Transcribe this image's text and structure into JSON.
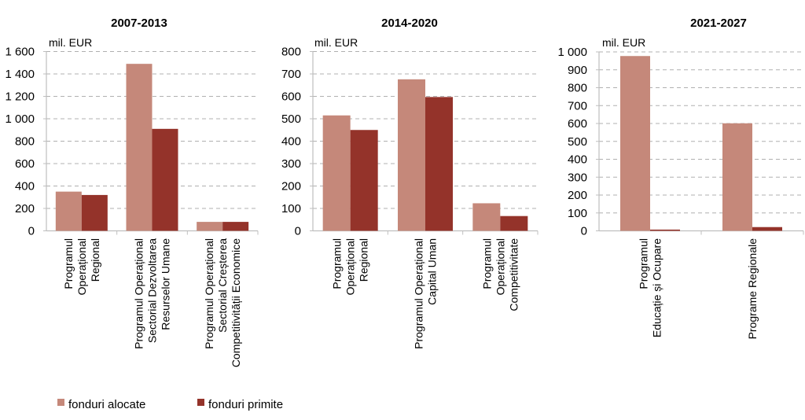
{
  "colors": {
    "alocate": "#C5887A",
    "primite": "#94332A",
    "axis": "#BFBFBF",
    "grid": "#B0B0B0"
  },
  "legend": {
    "items": [
      {
        "label": "fonduri alocate",
        "color": "#C5887A"
      },
      {
        "label": "fonduri primite",
        "color": "#94332A"
      }
    ],
    "placement": "bottom-left"
  },
  "chart_data": [
    {
      "type": "bar",
      "title": "2007-2013",
      "ylabel": "mil. EUR",
      "xlabel": "",
      "ylim": [
        0,
        1600
      ],
      "yticks": [
        0,
        200,
        400,
        600,
        800,
        1000,
        1200,
        1400,
        1600
      ],
      "ytick_labels": [
        "0",
        "200",
        "400",
        "600",
        "800",
        "1 000",
        "1 200",
        "1 400",
        "1 600"
      ],
      "grid": true,
      "categories": [
        [
          "Programul",
          "Operațional",
          "Regional"
        ],
        [
          "Programul Operațional",
          "Sectorial Dezvoltarea",
          "Resurselor Umane"
        ],
        [
          "Programul Operațional",
          "Sectorial Creșterea",
          "Competitivității Economice"
        ]
      ],
      "series": [
        {
          "name": "fonduri alocate",
          "values": [
            350,
            1490,
            80
          ]
        },
        {
          "name": "fonduri primite",
          "values": [
            320,
            910,
            80
          ]
        }
      ]
    },
    {
      "type": "bar",
      "title": "2014-2020",
      "ylabel": "mil. EUR",
      "xlabel": "",
      "ylim": [
        0,
        800
      ],
      "yticks": [
        0,
        100,
        200,
        300,
        400,
        500,
        600,
        700,
        800
      ],
      "ytick_labels": [
        "0",
        "100",
        "200",
        "300",
        "400",
        "500",
        "600",
        "700",
        "800"
      ],
      "grid": true,
      "categories": [
        [
          "Programul",
          "Operațional",
          "Regional"
        ],
        [
          "Programul Operațional",
          "Capital Uman"
        ],
        [
          "Programul",
          "Operațional",
          "Competitivitate"
        ]
      ],
      "series": [
        {
          "name": "fonduri alocate",
          "values": [
            515,
            676,
            123
          ]
        },
        {
          "name": "fonduri primite",
          "values": [
            450,
            597,
            66
          ]
        }
      ]
    },
    {
      "type": "bar",
      "title": "2021-2027",
      "ylabel": "mil. EUR",
      "xlabel": "",
      "ylim": [
        0,
        1000
      ],
      "yticks": [
        0,
        100,
        200,
        300,
        400,
        500,
        600,
        700,
        800,
        900,
        1000
      ],
      "ytick_labels": [
        "0",
        "100",
        "200",
        "300",
        "400",
        "500",
        "600",
        "700",
        "800",
        "900",
        "1 000"
      ],
      "grid": true,
      "categories": [
        [
          "Programul",
          "Educație și Ocupare"
        ],
        [
          "Programe Regionale"
        ]
      ],
      "series": [
        {
          "name": "fonduri alocate",
          "values": [
            977,
            601
          ]
        },
        {
          "name": "fonduri primite",
          "values": [
            7,
            21
          ]
        }
      ]
    }
  ]
}
